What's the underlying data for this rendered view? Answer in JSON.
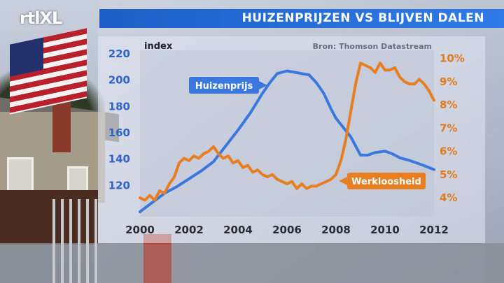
{
  "header": {
    "logo": "rtlXL",
    "title": "HUIZENPRIJZEN VS BLIJVEN DALEN"
  },
  "colors": {
    "price": "#3b78de",
    "unemployment": "#e77e22",
    "title_bar": "#2469d6"
  },
  "chart_data": {
    "type": "line",
    "ylabel": "index",
    "source": "Bron: Thomson Datastream",
    "xlim": [
      2000,
      2012
    ],
    "x_ticks": [
      "2000",
      "2002",
      "2004",
      "2006",
      "2008",
      "2010",
      "2012"
    ],
    "y_left": {
      "range": [
        100,
        220
      ],
      "ticks": [
        "120",
        "140",
        "160",
        "180",
        "200",
        "220"
      ]
    },
    "y_right": {
      "range": [
        3.4,
        10.2
      ],
      "ticks": [
        "4%",
        "5%",
        "6%",
        "7%",
        "8%",
        "9%",
        "10%"
      ]
    },
    "series": [
      {
        "name": "Huizenprijs",
        "axis": "left",
        "x": [
          2000.0,
          2000.5,
          2001.0,
          2001.5,
          2002.0,
          2002.5,
          2003.0,
          2003.5,
          2004.0,
          2004.5,
          2005.0,
          2005.3,
          2005.6,
          2006.0,
          2006.3,
          2006.6,
          2006.9,
          2007.2,
          2007.5,
          2007.8,
          2008.0,
          2008.3,
          2008.6,
          2009.0,
          2009.3,
          2009.6,
          2010.0,
          2010.3,
          2010.6,
          2011.0,
          2011.3,
          2011.6,
          2012.0
        ],
        "values": [
          100,
          107,
          114,
          119,
          125,
          131,
          138,
          150,
          162,
          175,
          190,
          198,
          205,
          207,
          206,
          205,
          204,
          198,
          190,
          178,
          171,
          164,
          157,
          143,
          143,
          145,
          146,
          144,
          141,
          139,
          137,
          135,
          132
        ]
      },
      {
        "name": "Werkloosheid",
        "axis": "right",
        "x": [
          2000.0,
          2000.2,
          2000.4,
          2000.6,
          2000.8,
          2001.0,
          2001.2,
          2001.4,
          2001.6,
          2001.8,
          2002.0,
          2002.2,
          2002.4,
          2002.6,
          2002.8,
          2003.0,
          2003.2,
          2003.4,
          2003.6,
          2003.8,
          2004.0,
          2004.2,
          2004.4,
          2004.6,
          2004.8,
          2005.0,
          2005.2,
          2005.4,
          2005.6,
          2005.8,
          2006.0,
          2006.2,
          2006.4,
          2006.6,
          2006.8,
          2007.0,
          2007.2,
          2007.4,
          2007.6,
          2007.8,
          2008.0,
          2008.2,
          2008.4,
          2008.6,
          2008.8,
          2009.0,
          2009.2,
          2009.4,
          2009.6,
          2009.8,
          2010.0,
          2010.2,
          2010.4,
          2010.6,
          2010.8,
          2011.0,
          2011.2,
          2011.4,
          2011.6,
          2011.8,
          2012.0
        ],
        "values": [
          4.0,
          3.9,
          4.1,
          3.9,
          4.3,
          4.2,
          4.6,
          4.9,
          5.5,
          5.7,
          5.6,
          5.8,
          5.7,
          5.9,
          6.0,
          6.2,
          5.9,
          5.7,
          5.8,
          5.5,
          5.6,
          5.3,
          5.4,
          5.1,
          5.2,
          5.0,
          4.9,
          5.0,
          4.8,
          4.7,
          4.6,
          4.7,
          4.4,
          4.6,
          4.4,
          4.5,
          4.5,
          4.6,
          4.7,
          4.8,
          5.0,
          5.6,
          6.5,
          7.7,
          8.9,
          9.8,
          9.7,
          9.6,
          9.4,
          9.8,
          9.5,
          9.5,
          9.6,
          9.2,
          9.0,
          8.9,
          8.9,
          9.1,
          8.9,
          8.6,
          8.2
        ]
      }
    ],
    "labels": {
      "price": "Huizenprijs",
      "unemployment": "Werkloosheid"
    }
  }
}
